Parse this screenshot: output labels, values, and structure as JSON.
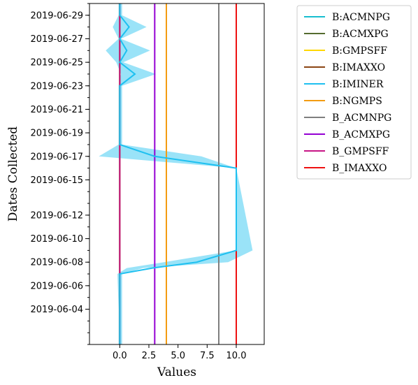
{
  "chart_data": {
    "type": "line",
    "title": "",
    "xlabel": "Values",
    "ylabel": "Dates Collected",
    "xlim": [
      -2.6,
      12.4
    ],
    "ylim": [
      "2019-06-01",
      "2019-06-30"
    ],
    "x_ticks": [
      0.0,
      2.5,
      5.0,
      7.5,
      10.0
    ],
    "x_tick_labels": [
      "0.0",
      "2.5",
      "5.0",
      "7.5",
      "10.0"
    ],
    "y_ticks": [
      "2019-06-04",
      "2019-06-06",
      "2019-06-08",
      "2019-06-10",
      "2019-06-12",
      "2019-06-15",
      "2019-06-17",
      "2019-06-19",
      "2019-06-21",
      "2019-06-23",
      "2019-06-25",
      "2019-06-27",
      "2019-06-29"
    ],
    "legend_position": "outside-right-top",
    "series": [
      {
        "name": "B:IMINER",
        "color": "#1ec0f0",
        "points": [
          {
            "date": "2019-06-01",
            "value": 0.0,
            "low": -0.1,
            "high": 0.2
          },
          {
            "date": "2019-06-04",
            "value": 0.0,
            "low": -0.1,
            "high": 0.2
          },
          {
            "date": "2019-06-07",
            "value": 0.0,
            "low": -0.2,
            "high": 0.2
          },
          {
            "date": "2019-06-07.5",
            "value": 2.8,
            "low": 0.6,
            "high": 2.0
          },
          {
            "date": "2019-06-08",
            "value": 6.6,
            "low": 3.8,
            "high": 9.3
          },
          {
            "date": "2019-06-09",
            "value": 10.0,
            "low": 10.0,
            "high": 11.4
          },
          {
            "date": "2019-06-16",
            "value": 10.0,
            "low": 10.0,
            "high": 10.0
          },
          {
            "date": "2019-06-17",
            "value": 3.0,
            "low": -1.8,
            "high": 7.0
          },
          {
            "date": "2019-06-18",
            "value": 0.0,
            "low": -0.1,
            "high": 0.2
          },
          {
            "date": "2019-06-23",
            "value": 0.0,
            "low": -0.1,
            "high": 0.2
          },
          {
            "date": "2019-06-24",
            "value": 1.3,
            "low": 0.1,
            "high": 3.1
          },
          {
            "date": "2019-06-25",
            "value": 0.0,
            "low": -0.3,
            "high": 0.3
          },
          {
            "date": "2019-06-26",
            "value": 0.6,
            "low": -1.2,
            "high": 2.6
          },
          {
            "date": "2019-06-27",
            "value": 0.0,
            "low": -0.1,
            "high": 0.1
          },
          {
            "date": "2019-06-28",
            "value": 0.8,
            "low": -0.6,
            "high": 2.3
          },
          {
            "date": "2019-06-29",
            "value": 0.0,
            "low": -0.1,
            "high": 0.2
          },
          {
            "date": "2019-06-30",
            "value": 0.0,
            "low": -0.1,
            "high": 0.2
          }
        ]
      }
    ],
    "vertical_lines": [
      {
        "name": "B:ACMNPG",
        "x": 0.0,
        "color": "#17becf"
      },
      {
        "name": "B:ACMXPG",
        "x": 0.0,
        "color": "#556b2f"
      },
      {
        "name": "B:GMPSFF",
        "x": 0.0,
        "color": "#ffd700"
      },
      {
        "name": "B:IMAXXO",
        "x": 0.0,
        "color": "#8b4513"
      },
      {
        "name": "B:NGMPS",
        "x": 4.0,
        "color": "#f39c12"
      },
      {
        "name": "B_ACMNPG",
        "x": 8.5,
        "color": "#7f7f7f"
      },
      {
        "name": "B_ACMXPG",
        "x": 3.0,
        "color": "#9400d3"
      },
      {
        "name": "B_GMPSFF",
        "x": 0.0,
        "color": "#c71585"
      },
      {
        "name": "B_IMAXXO",
        "x": 10.0,
        "color": "#ee1111"
      }
    ],
    "legend": [
      {
        "label": "B:ACMNPG",
        "color": "#17becf"
      },
      {
        "label": "B:ACMXPG",
        "color": "#556b2f"
      },
      {
        "label": "B:GMPSFF",
        "color": "#ffd700"
      },
      {
        "label": "B:IMAXXO",
        "color": "#8b4513"
      },
      {
        "label": "B:IMINER",
        "color": "#1ec0f0"
      },
      {
        "label": "B:NGMPS",
        "color": "#f39c12"
      },
      {
        "label": "B_ACMNPG",
        "color": "#7f7f7f"
      },
      {
        "label": "B_ACMXPG",
        "color": "#9400d3"
      },
      {
        "label": "B_GMPSFF",
        "color": "#c71585"
      },
      {
        "label": "B_IMAXXO",
        "color": "#ee1111"
      }
    ]
  }
}
